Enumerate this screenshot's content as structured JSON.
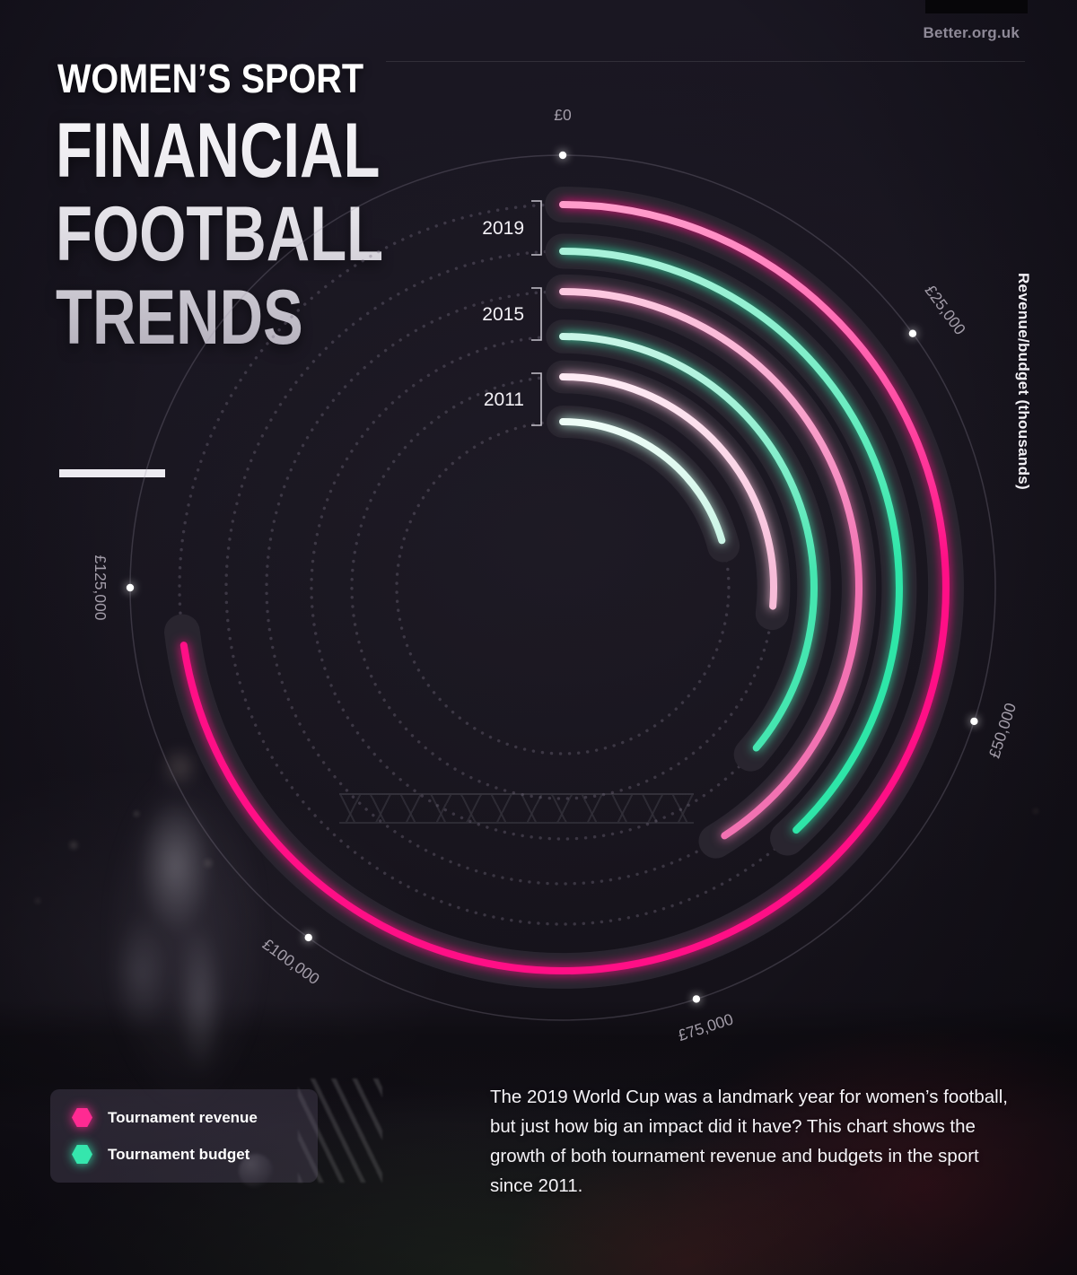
{
  "header": {
    "brand": "Better.org.uk"
  },
  "title": {
    "kicker": "WOMEN’S SPORT",
    "lines": [
      "FINANCIAL",
      "FOOTBALL",
      "TRENDS"
    ]
  },
  "legend": {
    "items": [
      {
        "label": "Tournament revenue",
        "color": "#ff2a92",
        "swatch": "hexagon"
      },
      {
        "label": "Tournament budget",
        "color": "#35e6ad",
        "swatch": "hexagon"
      }
    ]
  },
  "description": {
    "text": "The 2019 World Cup was a landmark year for women’s football, but just how big an impact did it have? This chart shows the growth of both tournament revenue and budgets in the sport since 2011."
  },
  "chart_data": {
    "type": "radial_bar",
    "title": "Women’s sport financial football trends",
    "radial_axis_label": "Revenue/budget (thousands)",
    "units": "GBP (thousands)",
    "direction": "clockwise",
    "start_angle_top": true,
    "axis_range": [
      0,
      150000
    ],
    "degrees_total_for_range": 324,
    "axis_ticks": [
      {
        "label": "£0",
        "value": 0
      },
      {
        "label": "£25,000",
        "value": 25000
      },
      {
        "label": "£50,000",
        "value": 50000
      },
      {
        "label": "£75,000",
        "value": 75000
      },
      {
        "label": "£100,000",
        "value": 100000
      },
      {
        "label": "£125,000",
        "value": 125000
      }
    ],
    "years": [
      "2019",
      "2015",
      "2011"
    ],
    "series": [
      {
        "year": "2019",
        "metric": "Tournament revenue",
        "value": 121000,
        "radius": 427,
        "color": "#ff0f86",
        "color_start": "#ff9ccb"
      },
      {
        "year": "2019",
        "metric": "Tournament budget",
        "value": 63000,
        "radius": 375,
        "color": "#2ee6a8",
        "color_start": "#a9f2da"
      },
      {
        "year": "2015",
        "metric": "Tournament revenue",
        "value": 68000,
        "radius": 330,
        "color": "#f272b2",
        "color_start": "#fcc9e0"
      },
      {
        "year": "2015",
        "metric": "Tournament budget",
        "value": 60000,
        "radius": 280,
        "color": "#45e6b0",
        "color_start": "#c8f5e7"
      },
      {
        "year": "2011",
        "metric": "Tournament revenue",
        "value": 44000,
        "radius": 235,
        "color": "#f7bcd8",
        "color_start": "#fdeaf3"
      },
      {
        "year": "2011",
        "metric": "Tournament budget",
        "value": 34000,
        "radius": 185,
        "color": "#bff2e0",
        "color_start": "#eefcf7"
      }
    ]
  }
}
